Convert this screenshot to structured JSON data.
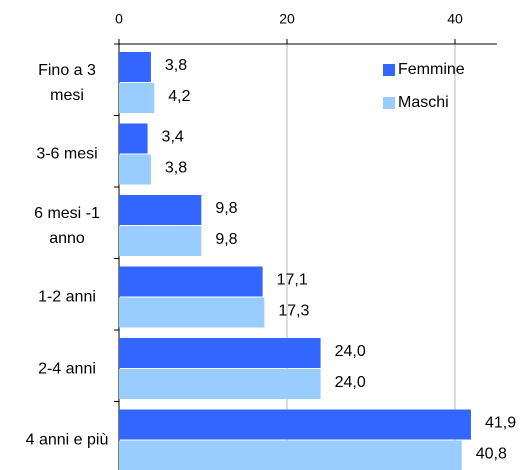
{
  "chart_data": {
    "type": "bar",
    "orientation": "horizontal",
    "categories": [
      "Fino a 3 mesi",
      "3-6 mesi",
      "6 mesi -1 anno",
      "1-2 anni",
      "2-4 anni",
      "4 anni e più"
    ],
    "series": [
      {
        "name": "Femmine",
        "color": "#3366ff",
        "values": [
          3.8,
          3.4,
          9.8,
          17.1,
          24.0,
          41.9
        ],
        "value_labels": [
          "3,8",
          "3,4",
          "9,8",
          "17,1",
          "24,0",
          "41,9"
        ]
      },
      {
        "name": "Maschi",
        "color": "#99ccff",
        "values": [
          4.2,
          3.8,
          9.8,
          17.3,
          24.0,
          40.8
        ],
        "value_labels": [
          "4,2",
          "3,8",
          "9,8",
          "17,3",
          "24,0",
          "40,8"
        ]
      }
    ],
    "xlim": [
      0,
      45
    ],
    "xticks": [
      0,
      20,
      40
    ],
    "grid": true,
    "legend": "top-right"
  }
}
